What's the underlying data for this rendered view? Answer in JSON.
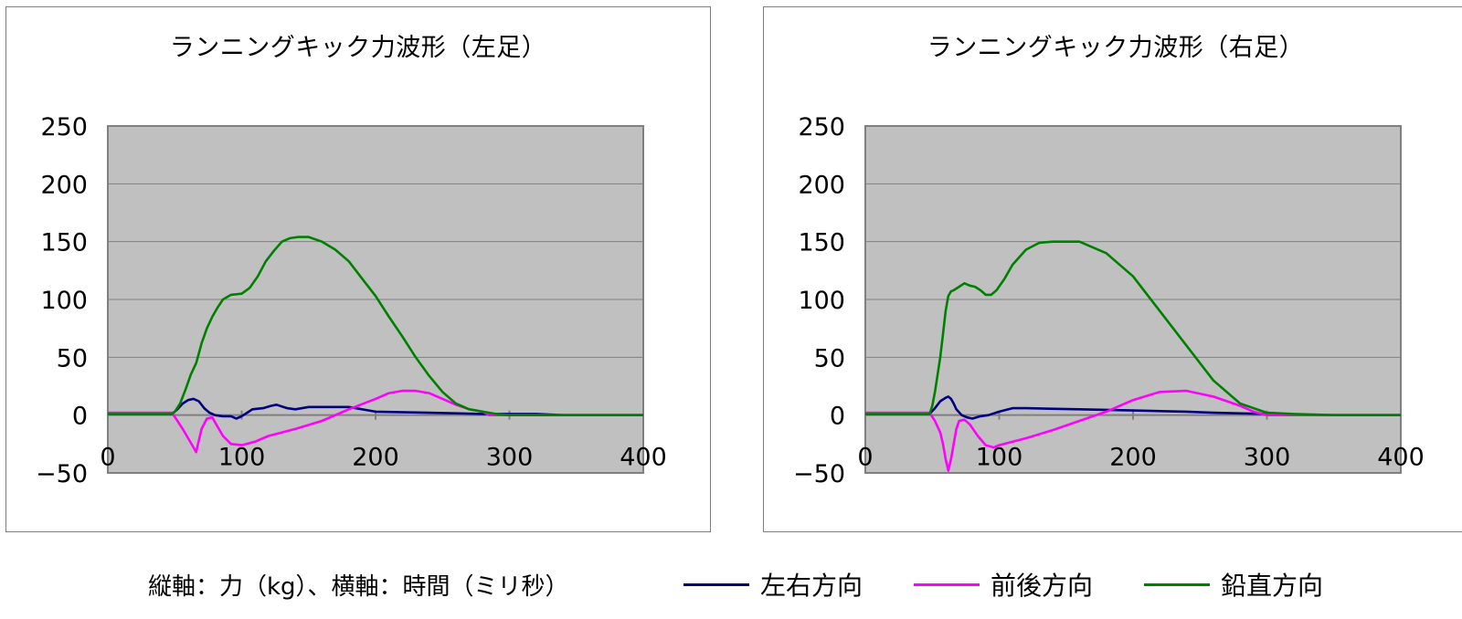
{
  "charts": [
    {
      "id": "left",
      "title": "ランニングキック力波形（左足）"
    },
    {
      "id": "right",
      "title": "ランニングキック力波形（右足）"
    }
  ],
  "footer_note": "縦軸：力（kg）、横軸：時間（ミリ秒）",
  "legend": [
    {
      "label": "左右方向",
      "color": "#000080"
    },
    {
      "label": "前後方向",
      "color": "#ff00ff"
    },
    {
      "label": "鉛直方向",
      "color": "#008000"
    }
  ],
  "plot_colors": {
    "plot_area": "#c0c0c0",
    "gridline": "#808080",
    "axis": "#808080"
  },
  "chart_data": [
    {
      "type": "line",
      "title": "ランニングキック力波形（左足）",
      "xlabel": "",
      "ylabel": "",
      "xlim": [
        0,
        400
      ],
      "ylim": [
        -50,
        250
      ],
      "xticks": [
        0,
        100,
        200,
        300,
        400
      ],
      "yticks": [
        -50,
        0,
        50,
        100,
        150,
        200,
        250
      ],
      "grid": "horizontal",
      "series": [
        {
          "name": "左右方向",
          "color": "#000080",
          "x": [
            0,
            48,
            52,
            56,
            60,
            64,
            68,
            72,
            76,
            80,
            86,
            92,
            96,
            100,
            104,
            108,
            116,
            122,
            126,
            134,
            140,
            150,
            180,
            200,
            240,
            280,
            300,
            320,
            340,
            400
          ],
          "y": [
            1,
            1,
            5,
            10,
            13,
            14,
            12,
            6,
            2,
            0,
            -1,
            -1,
            -3,
            -1,
            2,
            5,
            6,
            8,
            9,
            6,
            5,
            7,
            7,
            3,
            2,
            1,
            1,
            1,
            0,
            0
          ]
        },
        {
          "name": "前後方向",
          "color": "#ff00ff",
          "x": [
            0,
            48,
            52,
            56,
            60,
            64,
            66,
            68,
            70,
            74,
            78,
            82,
            86,
            92,
            100,
            110,
            120,
            140,
            160,
            180,
            200,
            210,
            220,
            230,
            240,
            250,
            260,
            270,
            280,
            285,
            400
          ],
          "y": [
            2,
            2,
            -5,
            -12,
            -20,
            -28,
            -32,
            -22,
            -12,
            -3,
            -2,
            -10,
            -18,
            -25,
            -26,
            -23,
            -18,
            -12,
            -5,
            5,
            14,
            19,
            21,
            21,
            19,
            14,
            9,
            5,
            3,
            0,
            0
          ]
        },
        {
          "name": "鉛直方向",
          "color": "#008000",
          "x": [
            0,
            48,
            50,
            54,
            58,
            62,
            66,
            70,
            74,
            78,
            82,
            86,
            92,
            100,
            106,
            112,
            118,
            124,
            130,
            136,
            142,
            150,
            160,
            170,
            180,
            190,
            200,
            210,
            220,
            230,
            240,
            250,
            260,
            270,
            280,
            290,
            300,
            400
          ],
          "y": [
            1,
            1,
            3,
            10,
            22,
            35,
            45,
            62,
            75,
            85,
            93,
            100,
            104,
            105,
            110,
            120,
            133,
            142,
            150,
            153,
            154,
            154,
            150,
            143,
            133,
            118,
            103,
            85,
            68,
            50,
            34,
            20,
            10,
            5,
            3,
            1,
            0,
            0
          ]
        }
      ]
    },
    {
      "type": "line",
      "title": "ランニングキック力波形（右足）",
      "xlabel": "",
      "ylabel": "",
      "xlim": [
        0,
        400
      ],
      "ylim": [
        -50,
        250
      ],
      "xticks": [
        0,
        100,
        200,
        300,
        400
      ],
      "yticks": [
        -50,
        0,
        50,
        100,
        150,
        200,
        250
      ],
      "grid": "horizontal",
      "series": [
        {
          "name": "左右方向",
          "color": "#000080",
          "x": [
            0,
            48,
            52,
            56,
            60,
            62,
            64,
            66,
            68,
            72,
            76,
            80,
            86,
            92,
            100,
            110,
            120,
            160,
            200,
            240,
            260,
            300,
            320,
            350,
            400
          ],
          "y": [
            1,
            1,
            6,
            12,
            15,
            16,
            14,
            10,
            5,
            0,
            -2,
            -3,
            -1,
            0,
            3,
            6,
            6,
            5,
            4,
            3,
            2,
            1,
            0,
            0,
            0
          ]
        },
        {
          "name": "前後方向",
          "color": "#ff00ff",
          "x": [
            0,
            48,
            52,
            56,
            58,
            60,
            62,
            64,
            66,
            68,
            70,
            74,
            78,
            84,
            90,
            96,
            100,
            120,
            140,
            160,
            180,
            200,
            220,
            240,
            260,
            280,
            290,
            300,
            400
          ],
          "y": [
            2,
            2,
            -5,
            -15,
            -25,
            -38,
            -48,
            -38,
            -25,
            -12,
            -5,
            -4,
            -8,
            -18,
            -26,
            -28,
            -26,
            -20,
            -13,
            -5,
            3,
            13,
            20,
            21,
            16,
            8,
            3,
            0,
            0
          ]
        },
        {
          "name": "鉛直方向",
          "color": "#008000",
          "x": [
            0,
            48,
            50,
            52,
            54,
            56,
            58,
            60,
            62,
            64,
            66,
            70,
            74,
            78,
            82,
            86,
            90,
            94,
            98,
            104,
            110,
            120,
            130,
            140,
            150,
            160,
            180,
            200,
            220,
            240,
            260,
            280,
            300,
            320,
            350,
            400
          ],
          "y": [
            1,
            1,
            8,
            20,
            35,
            50,
            70,
            90,
            103,
            107,
            108,
            111,
            114,
            112,
            111,
            108,
            104,
            104,
            108,
            118,
            130,
            143,
            149,
            150,
            150,
            150,
            140,
            120,
            90,
            60,
            30,
            10,
            2,
            1,
            0,
            0
          ]
        }
      ]
    }
  ]
}
